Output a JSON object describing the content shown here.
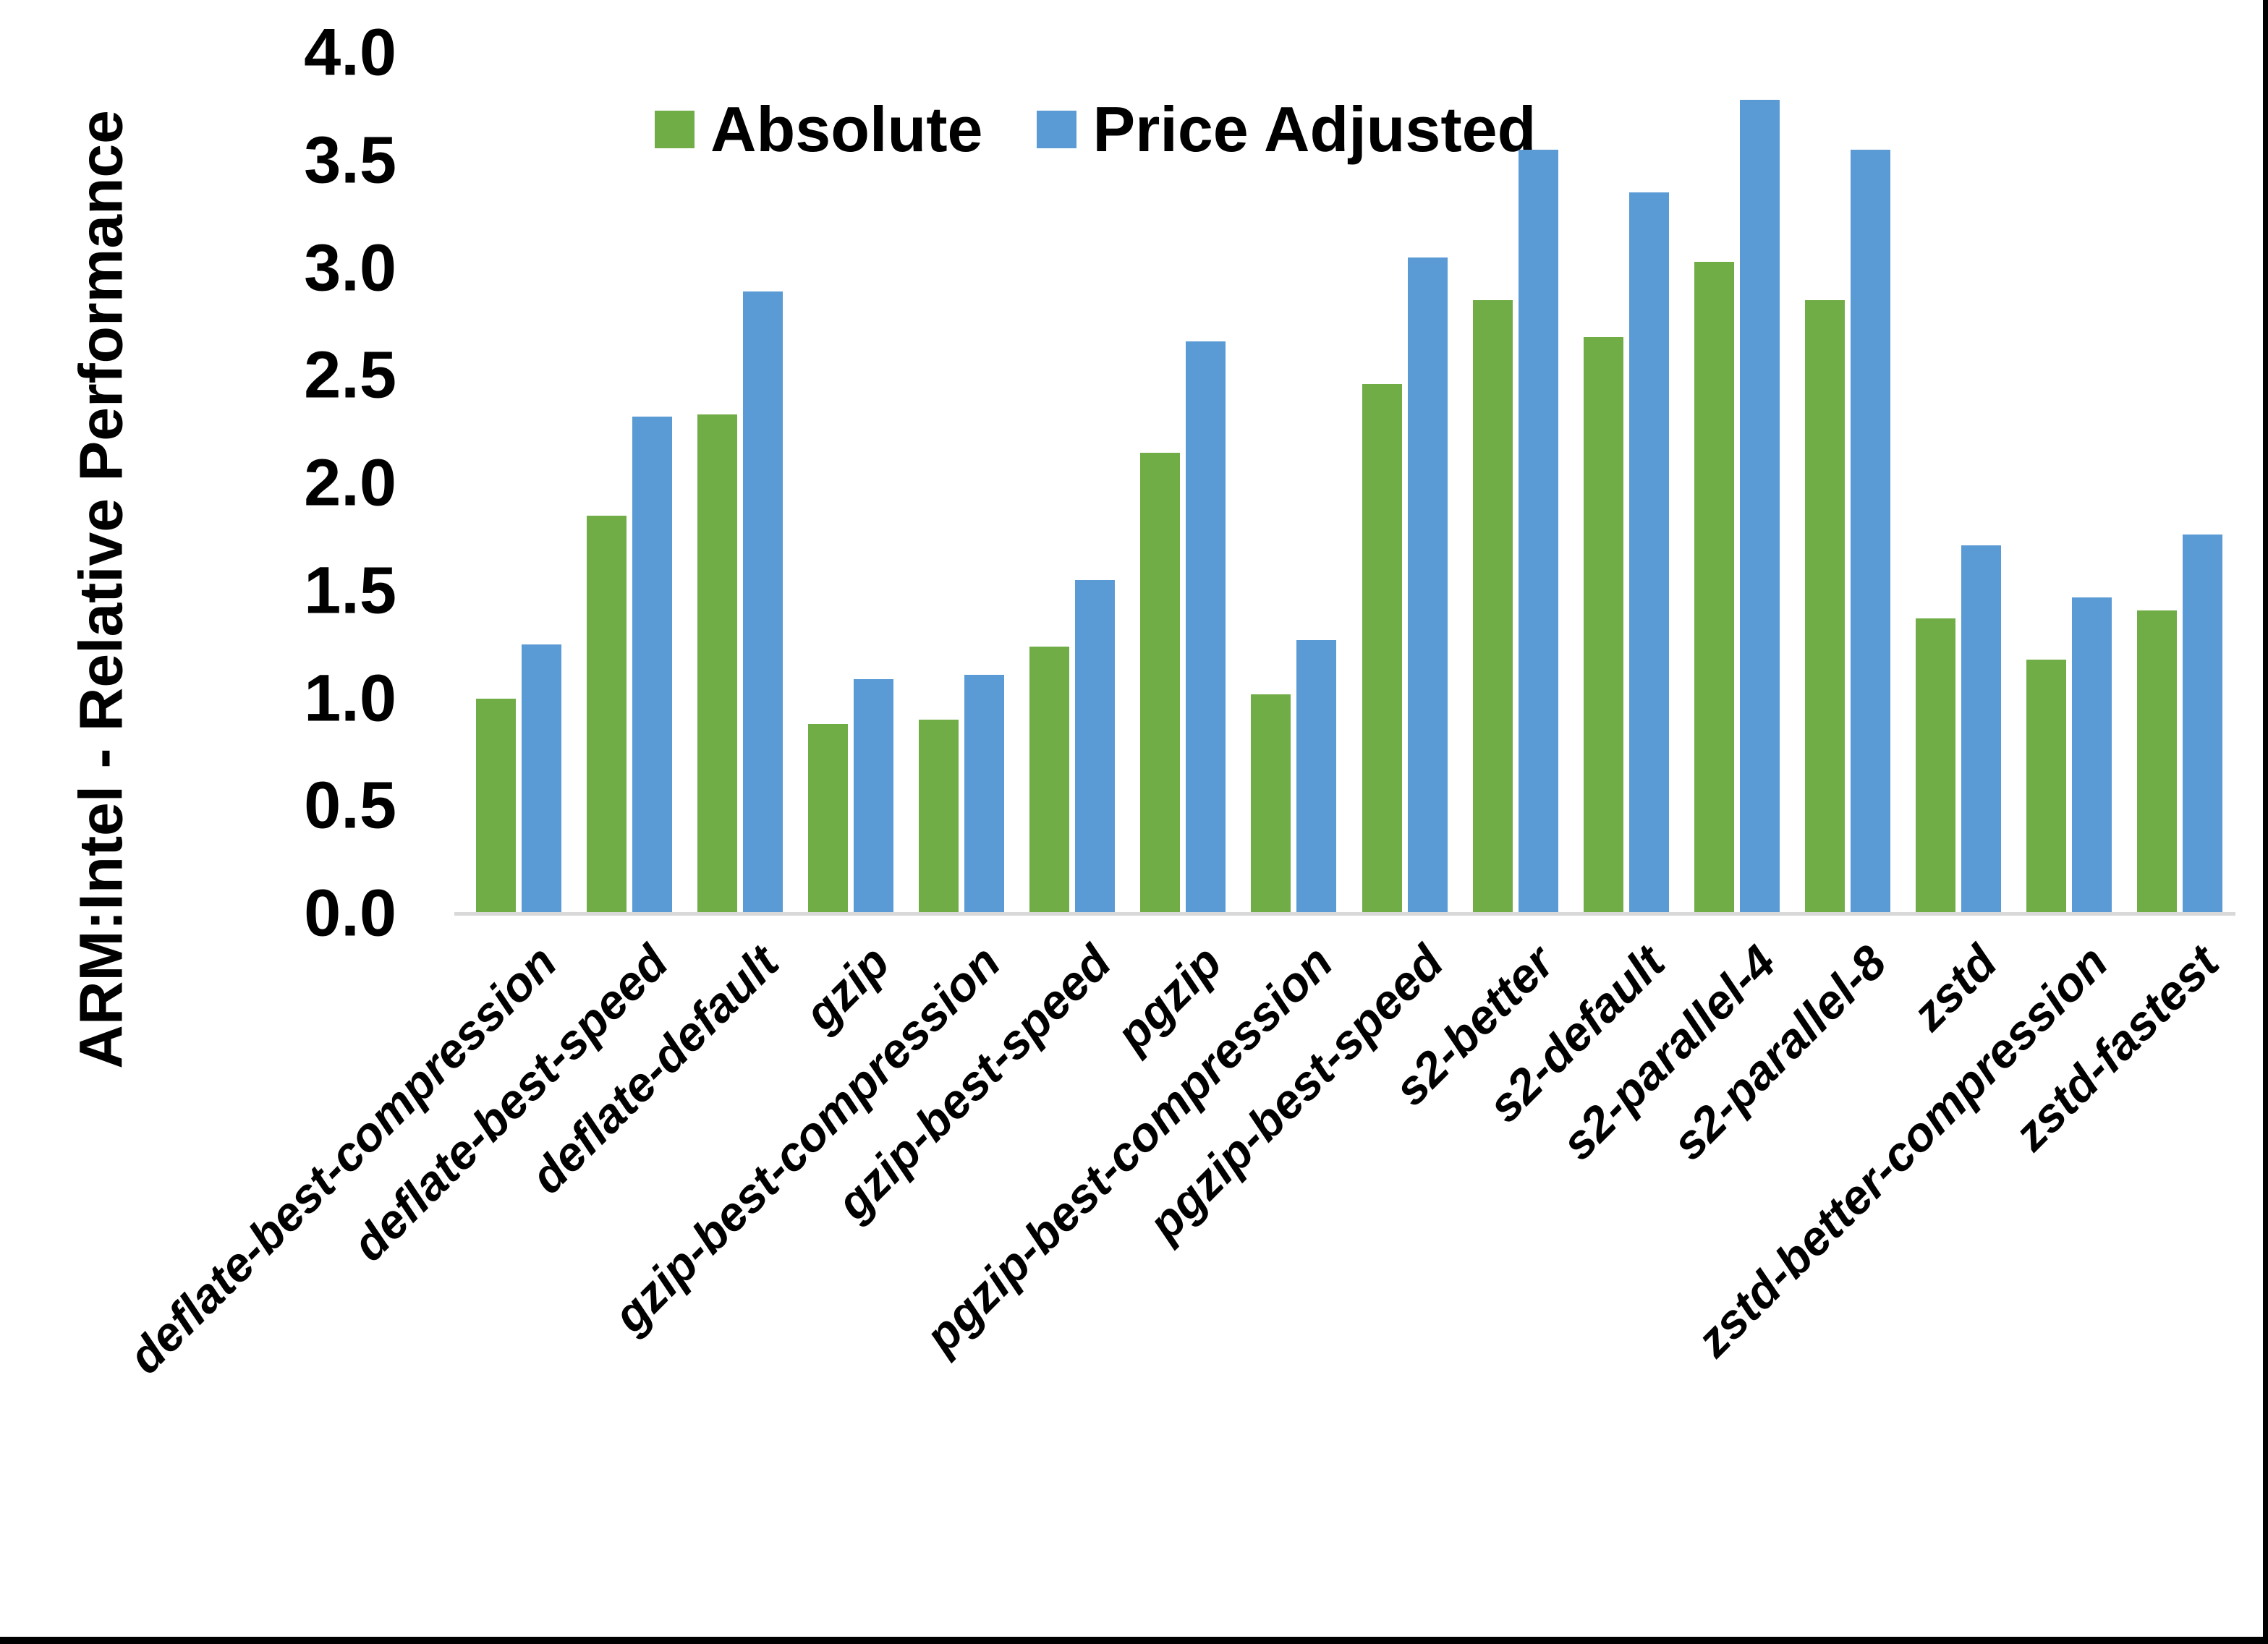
{
  "chart_data": {
    "type": "bar",
    "title": "",
    "xlabel": "",
    "ylabel": "ARM:Intel - Relative Performance",
    "ylim": [
      0.0,
      4.0
    ],
    "ytick_step": 0.5,
    "yticks": [
      "0.0",
      "0.5",
      "1.0",
      "1.5",
      "2.0",
      "2.5",
      "3.0",
      "3.5",
      "4.0"
    ],
    "grid": false,
    "legend_position": "top-center",
    "categories": [
      "deflate-best-compression",
      "deflate-best-speed",
      "deflate-default",
      "gzip",
      "gzip-best-compression",
      "gzip-best-speed",
      "pgzip",
      "pgzip-best-compression",
      "pgzip-best-speed",
      "s2-better",
      "s2-default",
      "s2-parallel-4",
      "s2-parallel-8",
      "zstd",
      "zstd-better-compression",
      "zstd-fastest"
    ],
    "series": [
      {
        "name": "Absolute",
        "color": "#70AD47",
        "values": [
          1.0,
          1.85,
          2.32,
          0.88,
          0.9,
          1.24,
          2.14,
          1.02,
          2.46,
          2.85,
          2.68,
          3.03,
          2.85,
          1.37,
          1.18,
          1.41
        ]
      },
      {
        "name": "Price Adjusted",
        "color": "#5B9BD5",
        "values": [
          1.25,
          2.31,
          2.89,
          1.09,
          1.11,
          1.55,
          2.66,
          1.27,
          3.05,
          3.55,
          3.35,
          3.78,
          3.55,
          1.71,
          1.47,
          1.76
        ]
      }
    ]
  },
  "colors": {
    "background": "#FFFFFF",
    "axis_line": "#D9D9D9",
    "text": "#000000",
    "border": "#000000"
  }
}
